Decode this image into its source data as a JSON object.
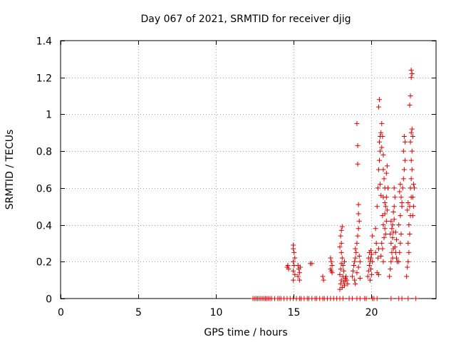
{
  "chart_data": {
    "type": "scatter",
    "title": "Day 067 of 2021, SRMTID for receiver djig",
    "xlabel": "GPS time / hours",
    "ylabel": "SRMTID / TECUs",
    "xlim": [
      0,
      24.2
    ],
    "ylim": [
      0,
      1.4
    ],
    "x_ticks": [
      0,
      5,
      10,
      15,
      20
    ],
    "x_tick_labels": [
      "0",
      "5",
      "10",
      "15",
      "20"
    ],
    "y_ticks": [
      0,
      0.2,
      0.4,
      0.6,
      0.8,
      1.0,
      1.2,
      1.4
    ],
    "y_tick_labels": [
      "0",
      "0.2",
      "0.4",
      "0.6",
      "0.8",
      "1",
      "1.2",
      "1.4"
    ],
    "grid": true,
    "marker": "+",
    "colors": {
      "series": "#dd0000",
      "grid": "#a0a0a0",
      "axis": "#000000"
    },
    "series": [
      {
        "name": "SRMTID",
        "points": [
          [
            12.4,
            0
          ],
          [
            12.5,
            0
          ],
          [
            12.6,
            0
          ],
          [
            12.7,
            0
          ],
          [
            12.8,
            0
          ],
          [
            12.9,
            0
          ],
          [
            13.0,
            0
          ],
          [
            13.1,
            0
          ],
          [
            13.2,
            0
          ],
          [
            13.3,
            0
          ],
          [
            13.4,
            0
          ],
          [
            13.5,
            0
          ],
          [
            13.6,
            0
          ],
          [
            13.8,
            0
          ],
          [
            14.0,
            0
          ],
          [
            14.1,
            0
          ],
          [
            14.2,
            0
          ],
          [
            14.4,
            0
          ],
          [
            14.6,
            0
          ],
          [
            14.8,
            0
          ],
          [
            15.0,
            0
          ],
          [
            15.2,
            0
          ],
          [
            15.4,
            0
          ],
          [
            15.5,
            0
          ],
          [
            15.7,
            0
          ],
          [
            15.9,
            0
          ],
          [
            16.0,
            0
          ],
          [
            16.2,
            0
          ],
          [
            16.4,
            0
          ],
          [
            16.5,
            0
          ],
          [
            16.7,
            0
          ],
          [
            16.9,
            0
          ],
          [
            17.0,
            0
          ],
          [
            17.2,
            0
          ],
          [
            17.4,
            0
          ],
          [
            17.6,
            0
          ],
          [
            17.8,
            0
          ],
          [
            18.0,
            0
          ],
          [
            18.2,
            0
          ],
          [
            18.6,
            0
          ],
          [
            18.8,
            0
          ],
          [
            19.1,
            0
          ],
          [
            19.3,
            0
          ],
          [
            19.6,
            0
          ],
          [
            19.7,
            0
          ],
          [
            20.1,
            0
          ],
          [
            20.2,
            0
          ],
          [
            20.4,
            0
          ],
          [
            21.3,
            0
          ],
          [
            21.8,
            0
          ],
          [
            22.0,
            0
          ],
          [
            22.4,
            0
          ],
          [
            22.9,
            0
          ],
          [
            14.6,
            0.17
          ],
          [
            14.7,
            0.16
          ],
          [
            14.65,
            0.18
          ],
          [
            15.0,
            0.29
          ],
          [
            15.0,
            0.27
          ],
          [
            15.05,
            0.25
          ],
          [
            15.1,
            0.22
          ],
          [
            15.0,
            0.2
          ],
          [
            15.05,
            0.18
          ],
          [
            15.0,
            0.15
          ],
          [
            15.1,
            0.13
          ],
          [
            15.0,
            0.1
          ],
          [
            15.3,
            0.18
          ],
          [
            15.35,
            0.16
          ],
          [
            15.4,
            0.14
          ],
          [
            15.3,
            0.12
          ],
          [
            15.4,
            0.1
          ],
          [
            15.45,
            0.17
          ],
          [
            16.1,
            0.19
          ],
          [
            16.2,
            0.19
          ],
          [
            16.9,
            0.12
          ],
          [
            16.95,
            0.1
          ],
          [
            17.4,
            0.22
          ],
          [
            17.45,
            0.2
          ],
          [
            17.5,
            0.18
          ],
          [
            17.4,
            0.16
          ],
          [
            17.5,
            0.14
          ],
          [
            17.45,
            0.15
          ],
          [
            18.0,
            0.05
          ],
          [
            18.05,
            0.08
          ],
          [
            18.1,
            0.1
          ],
          [
            18.0,
            0.13
          ],
          [
            18.05,
            0.16
          ],
          [
            18.1,
            0.19
          ],
          [
            18.15,
            0.22
          ],
          [
            18.1,
            0.25
          ],
          [
            18.0,
            0.28
          ],
          [
            18.1,
            0.3
          ],
          [
            18.05,
            0.34
          ],
          [
            18.1,
            0.37
          ],
          [
            18.15,
            0.39
          ],
          [
            18.2,
            0.12
          ],
          [
            18.25,
            0.09
          ],
          [
            18.3,
            0.07
          ],
          [
            18.35,
            0.1
          ],
          [
            18.4,
            0.12
          ],
          [
            18.2,
            0.18
          ],
          [
            18.3,
            0.2
          ],
          [
            18.15,
            0.06
          ],
          [
            18.25,
            0.15
          ],
          [
            18.35,
            0.11
          ],
          [
            18.45,
            0.1
          ],
          [
            18.5,
            0.08
          ],
          [
            18.8,
            0.12
          ],
          [
            18.85,
            0.15
          ],
          [
            18.9,
            0.18
          ],
          [
            18.95,
            0.2
          ],
          [
            19.0,
            0.22
          ],
          [
            19.05,
            0.25
          ],
          [
            19.0,
            0.27
          ],
          [
            18.95,
            0.1
          ],
          [
            19.1,
            0.3
          ],
          [
            19.15,
            0.34
          ],
          [
            19.2,
            0.38
          ],
          [
            19.25,
            0.42
          ],
          [
            19.2,
            0.46
          ],
          [
            19.2,
            0.51
          ],
          [
            19.15,
            0.73
          ],
          [
            19.15,
            0.83
          ],
          [
            19.1,
            0.95
          ],
          [
            19.0,
            0.08
          ],
          [
            19.1,
            0.14
          ],
          [
            19.2,
            0.17
          ],
          [
            19.3,
            0.2
          ],
          [
            19.25,
            0.23
          ],
          [
            19.3,
            0.11
          ],
          [
            19.8,
            0.12
          ],
          [
            19.85,
            0.15
          ],
          [
            19.9,
            0.18
          ],
          [
            19.95,
            0.2
          ],
          [
            20.0,
            0.22
          ],
          [
            20.05,
            0.24
          ],
          [
            19.9,
            0.25
          ],
          [
            20.0,
            0.16
          ],
          [
            20.05,
            0.13
          ],
          [
            19.95,
            0.1
          ],
          [
            20.1,
            0.2
          ],
          [
            20.0,
            0.26
          ],
          [
            19.85,
            0.22
          ],
          [
            20.1,
            0.34
          ],
          [
            20.3,
            0.38
          ],
          [
            20.4,
            0.5
          ],
          [
            20.45,
            0.6
          ],
          [
            20.3,
            0.25
          ],
          [
            20.35,
            0.3
          ],
          [
            20.4,
            0.14
          ],
          [
            20.5,
            0.13
          ],
          [
            20.45,
            0.22
          ],
          [
            20.5,
            0.27
          ],
          [
            20.5,
            0.7
          ],
          [
            20.55,
            0.75
          ],
          [
            20.6,
            0.8
          ],
          [
            20.55,
            0.85
          ],
          [
            20.6,
            0.88
          ],
          [
            20.65,
            0.9
          ],
          [
            20.5,
            1.04
          ],
          [
            20.55,
            1.08
          ],
          [
            20.7,
            0.95
          ],
          [
            20.75,
            0.88
          ],
          [
            20.7,
            0.82
          ],
          [
            20.8,
            0.78
          ],
          [
            20.8,
            0.7
          ],
          [
            20.85,
            0.65
          ],
          [
            20.9,
            0.6
          ],
          [
            20.8,
            0.55
          ],
          [
            20.9,
            0.52
          ],
          [
            20.95,
            0.5
          ],
          [
            20.75,
            0.45
          ],
          [
            20.8,
            0.4
          ],
          [
            20.9,
            0.38
          ],
          [
            20.85,
            0.33
          ],
          [
            20.7,
            0.3
          ],
          [
            20.75,
            0.27
          ],
          [
            20.65,
            0.23
          ],
          [
            20.8,
            0.2
          ],
          [
            20.95,
            0.35
          ],
          [
            21.0,
            0.42
          ],
          [
            21.05,
            0.48
          ],
          [
            21.0,
            0.55
          ],
          [
            21.1,
            0.6
          ],
          [
            21.0,
            0.68
          ],
          [
            21.05,
            0.72
          ],
          [
            20.9,
            0.46
          ],
          [
            20.6,
            0.62
          ],
          [
            20.65,
            0.56
          ],
          [
            21.2,
            0.12
          ],
          [
            21.25,
            0.16
          ],
          [
            21.3,
            0.2
          ],
          [
            21.35,
            0.25
          ],
          [
            21.3,
            0.3
          ],
          [
            21.4,
            0.33
          ],
          [
            21.45,
            0.36
          ],
          [
            21.4,
            0.4
          ],
          [
            21.5,
            0.43
          ],
          [
            21.45,
            0.47
          ],
          [
            21.5,
            0.5
          ],
          [
            21.55,
            0.55
          ],
          [
            21.5,
            0.6
          ],
          [
            21.35,
            0.38
          ],
          [
            21.25,
            0.35
          ],
          [
            21.6,
            0.36
          ],
          [
            21.65,
            0.32
          ],
          [
            21.55,
            0.28
          ],
          [
            21.6,
            0.25
          ],
          [
            21.65,
            0.22
          ],
          [
            21.7,
            0.2
          ],
          [
            21.4,
            0.22
          ],
          [
            21.45,
            0.27
          ],
          [
            21.3,
            0.42
          ],
          [
            21.8,
            0.2
          ],
          [
            21.85,
            0.25
          ],
          [
            21.9,
            0.3
          ],
          [
            21.95,
            0.35
          ],
          [
            21.8,
            0.4
          ],
          [
            21.9,
            0.45
          ],
          [
            22.0,
            0.5
          ],
          [
            21.95,
            0.55
          ],
          [
            22.05,
            0.6
          ],
          [
            22.1,
            0.65
          ],
          [
            22.15,
            0.7
          ],
          [
            22.2,
            0.75
          ],
          [
            22.1,
            0.8
          ],
          [
            22.2,
            0.85
          ],
          [
            22.15,
            0.88
          ],
          [
            22.0,
            0.52
          ],
          [
            21.85,
            0.58
          ],
          [
            21.9,
            0.62
          ],
          [
            22.3,
            0.12
          ],
          [
            22.35,
            0.17
          ],
          [
            22.4,
            0.2
          ],
          [
            22.45,
            0.25
          ],
          [
            22.4,
            0.3
          ],
          [
            22.5,
            0.35
          ],
          [
            22.45,
            0.4
          ],
          [
            22.55,
            0.45
          ],
          [
            22.5,
            0.5
          ],
          [
            22.6,
            0.55
          ],
          [
            22.55,
            0.6
          ],
          [
            22.6,
            0.65
          ],
          [
            22.65,
            0.7
          ],
          [
            22.6,
            0.75
          ],
          [
            22.65,
            0.8
          ],
          [
            22.55,
            0.85
          ],
          [
            22.6,
            0.9
          ],
          [
            22.65,
            0.92
          ],
          [
            22.7,
            0.88
          ],
          [
            22.5,
            1.05
          ],
          [
            22.55,
            1.1
          ],
          [
            22.6,
            1.2
          ],
          [
            22.65,
            1.22
          ],
          [
            22.6,
            1.24
          ],
          [
            22.7,
            0.55
          ],
          [
            22.75,
            0.5
          ],
          [
            22.7,
            0.45
          ],
          [
            22.8,
            0.6
          ],
          [
            22.75,
            0.62
          ],
          [
            22.4,
            0.52
          ],
          [
            22.35,
            0.48
          ]
        ]
      }
    ]
  }
}
